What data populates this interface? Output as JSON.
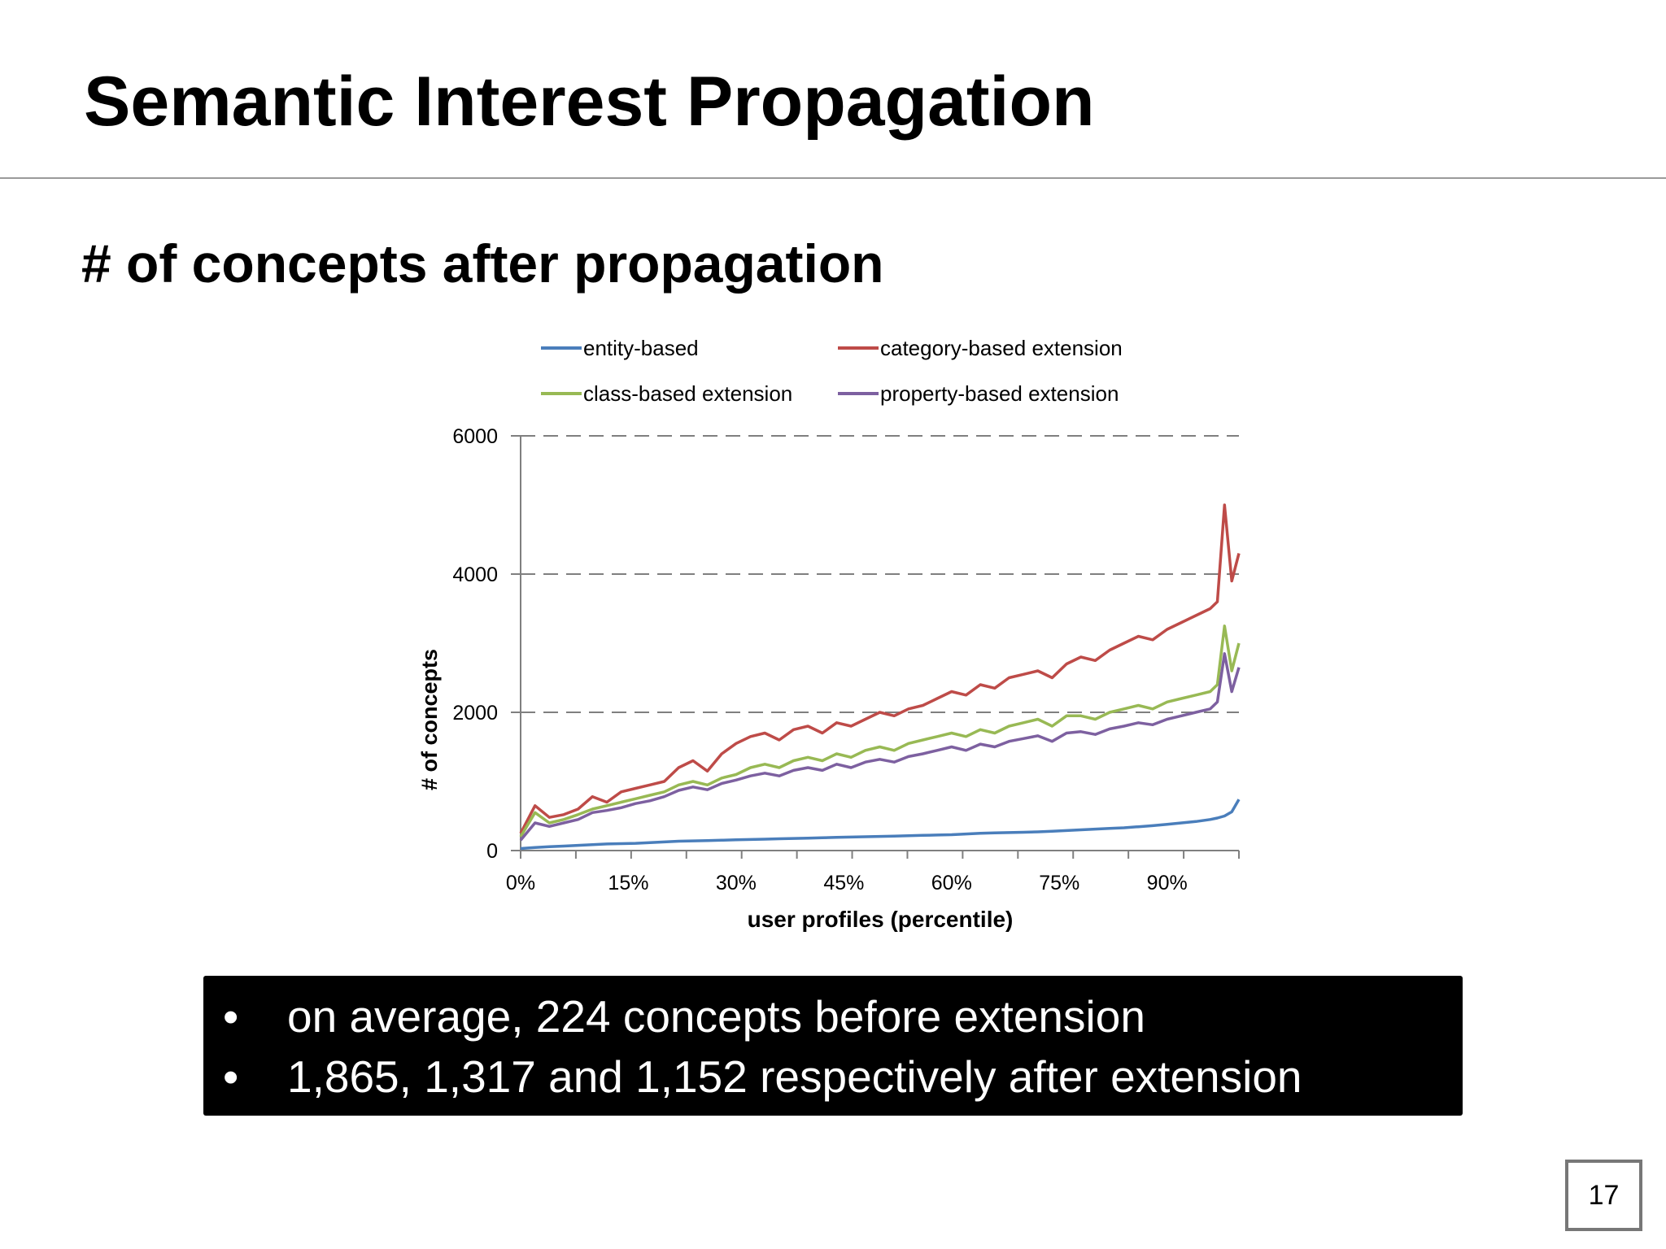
{
  "slide": {
    "title": "Semantic Interest Propagation",
    "subtitle": "# of concepts after propagation",
    "page_number": "17",
    "bullets": [
      "on average, 224 concepts before extension",
      "1,865, 1,317 and 1,152 respectively after extension"
    ]
  },
  "chart_data": {
    "type": "line",
    "title": "",
    "xlabel": "user profiles (percentile)",
    "ylabel": "# of concepts",
    "ylim": [
      0,
      6000
    ],
    "xlim": [
      0,
      100
    ],
    "yticks": [
      0,
      2000,
      4000,
      6000
    ],
    "xtick_labels": [
      "0%",
      "15%",
      "30%",
      "45%",
      "60%",
      "75%",
      "90%"
    ],
    "xtick_values": [
      0,
      15,
      30,
      45,
      60,
      75,
      90
    ],
    "grid": "horizontal dashed",
    "legend_position": "top",
    "x": [
      0,
      2,
      4,
      6,
      8,
      10,
      12,
      14,
      16,
      18,
      20,
      22,
      24,
      26,
      28,
      30,
      32,
      34,
      36,
      38,
      40,
      42,
      44,
      46,
      48,
      50,
      52,
      54,
      56,
      58,
      60,
      62,
      64,
      66,
      68,
      70,
      72,
      74,
      76,
      78,
      80,
      82,
      84,
      86,
      88,
      90,
      92,
      94,
      96,
      97,
      98,
      99,
      100
    ],
    "series": [
      {
        "name": "entity-based",
        "color": "#4a7ebb",
        "values": [
          30,
          45,
          55,
          65,
          75,
          85,
          95,
          100,
          105,
          115,
          125,
          135,
          140,
          145,
          150,
          155,
          160,
          165,
          170,
          175,
          180,
          185,
          190,
          195,
          200,
          205,
          210,
          215,
          220,
          225,
          230,
          240,
          250,
          255,
          260,
          265,
          270,
          280,
          290,
          300,
          310,
          320,
          330,
          345,
          360,
          380,
          400,
          420,
          450,
          470,
          500,
          560,
          740
        ]
      },
      {
        "name": "category-based extension",
        "color": "#be4b48",
        "values": [
          250,
          650,
          480,
          520,
          600,
          780,
          700,
          850,
          900,
          950,
          1000,
          1200,
          1300,
          1150,
          1400,
          1550,
          1650,
          1700,
          1600,
          1750,
          1800,
          1700,
          1850,
          1800,
          1900,
          2000,
          1950,
          2050,
          2100,
          2200,
          2300,
          2250,
          2400,
          2350,
          2500,
          2550,
          2600,
          2500,
          2700,
          2800,
          2750,
          2900,
          3000,
          3100,
          3050,
          3200,
          3300,
          3400,
          3500,
          3600,
          5000,
          3900,
          4300
        ]
      },
      {
        "name": "class-based extension",
        "color": "#98b954",
        "values": [
          200,
          550,
          400,
          450,
          520,
          600,
          650,
          700,
          750,
          800,
          850,
          950,
          1000,
          950,
          1050,
          1100,
          1200,
          1250,
          1200,
          1300,
          1350,
          1300,
          1400,
          1350,
          1450,
          1500,
          1450,
          1550,
          1600,
          1650,
          1700,
          1650,
          1750,
          1700,
          1800,
          1850,
          1900,
          1800,
          1950,
          1950,
          1900,
          2000,
          2050,
          2100,
          2050,
          2150,
          2200,
          2250,
          2300,
          2400,
          3250,
          2600,
          3000
        ]
      },
      {
        "name": "property-based extension",
        "color": "#7d60a0",
        "values": [
          150,
          400,
          350,
          400,
          450,
          550,
          580,
          620,
          680,
          720,
          780,
          870,
          920,
          880,
          970,
          1020,
          1080,
          1120,
          1080,
          1160,
          1200,
          1160,
          1250,
          1200,
          1280,
          1320,
          1280,
          1360,
          1400,
          1450,
          1500,
          1450,
          1540,
          1500,
          1580,
          1620,
          1660,
          1580,
          1700,
          1720,
          1680,
          1760,
          1800,
          1850,
          1820,
          1900,
          1950,
          2000,
          2050,
          2150,
          2850,
          2300,
          2650
        ]
      }
    ]
  }
}
